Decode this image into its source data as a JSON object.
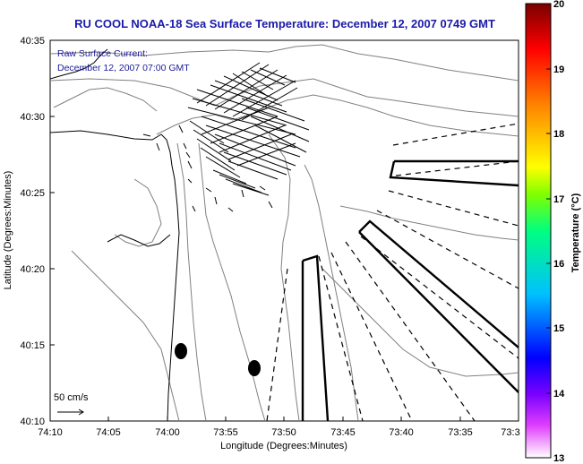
{
  "title": "RU COOL  NOAA-18  Sea Surface Temperature:  December 12, 2007 0749 GMT",
  "current_label": "Raw Surface Current:",
  "current_time": "December 12, 2007 07:00 GMT",
  "scale_label": "50 cm/s",
  "x_axis": {
    "label": "Longitude (Degrees:Minutes)",
    "ticks": [
      "74:10",
      "74:05",
      "74:00",
      "73:55",
      "73:50",
      "73:45",
      "73:40",
      "73:35",
      "73:3"
    ]
  },
  "y_axis": {
    "label": "Latitude (Degrees:Minutes)",
    "ticks": [
      "40:35",
      "40:30",
      "40:25",
      "40:20",
      "40:15",
      "40:10"
    ]
  },
  "colorbar": {
    "label": "Temperature (°C)",
    "ticks": [
      "20",
      "19",
      "18",
      "17",
      "16",
      "15",
      "14",
      "13"
    ],
    "min": 13,
    "max": 20
  },
  "colors": {
    "title": "#1a1aa8",
    "contour": "#808080"
  }
}
